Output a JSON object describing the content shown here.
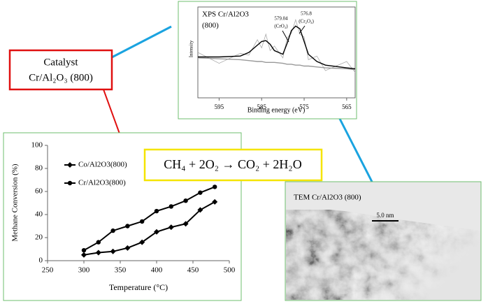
{
  "chart_data": [
    {
      "type": "line",
      "x_label": "Temperature (°C)",
      "y_label": "Methane Conversion (%)",
      "x": [
        300,
        320,
        340,
        360,
        380,
        400,
        420,
        440,
        460,
        480
      ],
      "series": [
        {
          "name": "Co/Al2O3(800)",
          "color": "#000000",
          "marker": "diamond",
          "values": [
            5,
            7,
            8,
            11,
            16,
            25,
            29,
            32,
            44,
            51
          ]
        },
        {
          "name": "Cr/Al2O3(800)",
          "color": "#000000",
          "marker": "circle",
          "values": [
            9,
            16,
            26,
            30,
            34,
            43,
            47,
            52,
            59,
            64
          ]
        }
      ],
      "xlim": [
        250,
        500
      ],
      "xticks": [
        250,
        300,
        350,
        400,
        450,
        500
      ],
      "ylim": [
        0,
        100
      ],
      "yticks": [
        0,
        20,
        40,
        60,
        80,
        100
      ]
    },
    {
      "type": "line",
      "title": "XPS Cr/Al2O3",
      "subtitle": "(800)",
      "x_label": "Binding energy (eV)",
      "y_label": "Intensity",
      "annotations": [
        "579.04",
        "(CrO₃)",
        "576.8",
        "(Cr₂O₃)"
      ],
      "x": [
        600,
        595,
        590,
        588,
        586,
        585,
        584,
        583,
        582,
        580,
        579,
        578,
        577,
        576,
        575,
        574,
        572,
        570,
        565,
        563
      ],
      "series": [
        {
          "color": "#aaaaaa",
          "values": [
            50,
            38,
            49,
            47,
            64,
            55,
            70,
            52,
            57,
            44,
            66,
            71,
            86,
            70,
            67,
            42,
            46,
            30,
            40,
            28
          ]
        },
        {
          "color": "#999999",
          "values": [
            44,
            43,
            42,
            41,
            40,
            40,
            39,
            39,
            39,
            38,
            37,
            37,
            36,
            36,
            35,
            35,
            34,
            33,
            32,
            31
          ]
        },
        {
          "color": "#000000",
          "values": [
            45,
            45,
            46,
            50,
            58,
            62,
            63,
            59,
            52,
            48,
            60,
            74,
            79,
            76,
            62,
            48,
            40,
            36,
            33,
            32
          ]
        }
      ],
      "xlim": [
        600,
        563
      ],
      "xticks": [
        595,
        585,
        575,
        565
      ],
      "ylim": [
        0,
        100
      ]
    }
  ],
  "catalyst_label": {
    "line1": "Catalyst",
    "line2": "Cr/Al₂O₃ (800)"
  },
  "equation": "CH₄  +  2O₂ → CO₂  +  2H₂O",
  "tem": {
    "title": "TEM Cr/Al2O3 (800)",
    "scale": "5.0 nm"
  }
}
